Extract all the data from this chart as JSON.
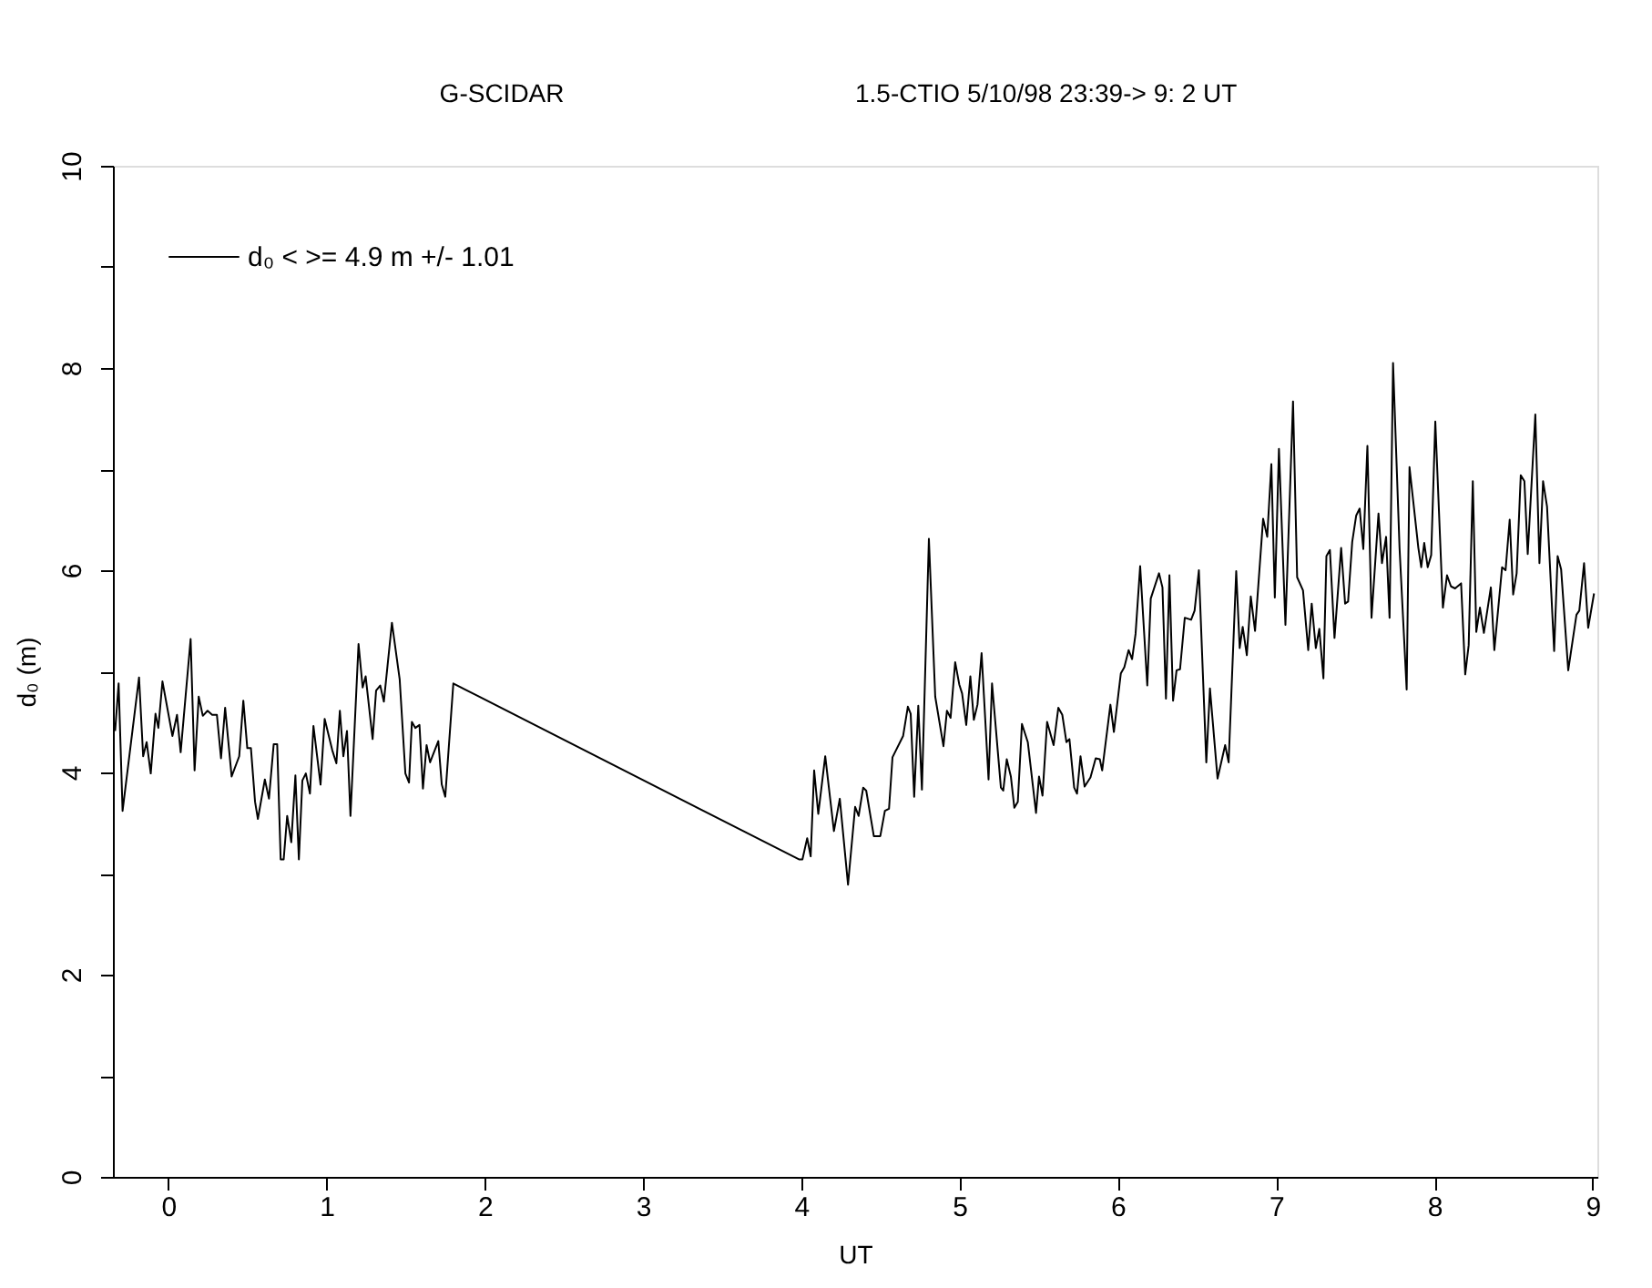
{
  "chart_data": {
    "type": "line",
    "title": "G-SCIDAR",
    "subtitle": "1.5-CTIO    5/10/98 23:39-> 9: 2 UT",
    "xlabel": "UT",
    "ylabel": "d₀ (m)",
    "legend": "top left",
    "grid": false,
    "line_style": "solid",
    "marker": "none",
    "xlim": [
      -0.35,
      9.03
    ],
    "xticks": [
      0,
      1,
      2,
      3,
      4,
      5,
      6,
      7,
      8,
      9
    ],
    "ylim": [
      0,
      10
    ],
    "yticks": [
      0,
      {
        "value": 1,
        "label": null
      },
      2,
      {
        "value": 3,
        "label": null
      },
      4,
      {
        "value": 5,
        "label": null
      },
      6,
      {
        "value": 7,
        "label": null
      },
      8,
      {
        "value": 9,
        "label": null
      },
      10
    ],
    "series": [
      {
        "name": "d₀   < >=  4.9 m +/-  1.01",
        "color": "#000000",
        "x": [
          -0.336,
          -0.314,
          -0.289,
          -0.185,
          -0.159,
          -0.137,
          -0.111,
          -0.081,
          -0.063,
          -0.037,
          0.026,
          0.055,
          0.078,
          0.141,
          0.166,
          0.192,
          0.218,
          0.248,
          0.277,
          0.307,
          0.333,
          0.359,
          0.4,
          0.448,
          0.474,
          0.499,
          0.522,
          0.548,
          0.566,
          0.61,
          0.636,
          0.666,
          0.688,
          0.71,
          0.729,
          0.751,
          0.777,
          0.803,
          0.825,
          0.847,
          0.869,
          0.895,
          0.917,
          0.962,
          0.988,
          1.036,
          1.062,
          1.084,
          1.106,
          1.129,
          1.151,
          1.202,
          1.228,
          1.247,
          1.291,
          1.313,
          1.339,
          1.362,
          1.413,
          1.462,
          1.498,
          1.521,
          1.539,
          1.561,
          1.587,
          1.609,
          1.632,
          1.654,
          1.706,
          1.728,
          1.75,
          1.801,
          3.985,
          4.007,
          4.037,
          4.059,
          4.081,
          4.107,
          4.151,
          4.206,
          4.243,
          4.295,
          4.34,
          4.362,
          4.391,
          4.41,
          4.458,
          4.499,
          4.528,
          4.554,
          4.576,
          4.643,
          4.673,
          4.691,
          4.713,
          4.739,
          4.762,
          4.806,
          4.846,
          4.898,
          4.92,
          4.943,
          4.972,
          4.998,
          5.016,
          5.042,
          5.068,
          5.09,
          5.113,
          5.139,
          5.183,
          5.205,
          5.261,
          5.276,
          5.298,
          5.324,
          5.346,
          5.368,
          5.394,
          5.431,
          5.483,
          5.502,
          5.524,
          5.553,
          5.594,
          5.624,
          5.649,
          5.675,
          5.694,
          5.724,
          5.742,
          5.764,
          5.79,
          5.827,
          5.86,
          5.886,
          5.901,
          5.953,
          5.975,
          6.019,
          6.041,
          6.068,
          6.09,
          6.112,
          6.141,
          6.186,
          6.208,
          6.26,
          6.282,
          6.304,
          6.326,
          6.349,
          6.371,
          6.393,
          6.423,
          6.463,
          6.485,
          6.512,
          6.559,
          6.582,
          6.63,
          6.678,
          6.7,
          6.748,
          6.77,
          6.789,
          6.815,
          6.84,
          6.867,
          6.918,
          6.944,
          6.97,
          6.992,
          7.018,
          7.059,
          7.107,
          7.133,
          7.17,
          7.203,
          7.225,
          7.251,
          7.273,
          7.299,
          7.318,
          7.34,
          7.369,
          7.411,
          7.436,
          7.455,
          7.481,
          7.506,
          7.528,
          7.551,
          7.577,
          7.603,
          7.647,
          7.669,
          7.695,
          7.717,
          7.739,
          7.78,
          7.825,
          7.843,
          7.899,
          7.917,
          7.936,
          7.958,
          7.98,
          8.006,
          8.054,
          8.08,
          8.105,
          8.131,
          8.169,
          8.195,
          8.217,
          8.243,
          8.265,
          8.288,
          8.313,
          8.357,
          8.379,
          8.428,
          8.45,
          8.476,
          8.498,
          8.52,
          8.546,
          8.569,
          8.59,
          8.638,
          8.664,
          8.687,
          8.712,
          8.757,
          8.779,
          8.801,
          8.846,
          8.898,
          8.916,
          8.946,
          8.972,
          9.009
        ],
        "values": [
          4.41,
          4.88,
          3.62,
          4.94,
          4.16,
          4.3,
          3.99,
          4.58,
          4.44,
          4.9,
          4.36,
          4.57,
          4.2,
          5.32,
          4.02,
          4.75,
          4.56,
          4.61,
          4.57,
          4.57,
          4.14,
          4.64,
          3.96,
          4.16,
          4.71,
          4.24,
          4.24,
          3.71,
          3.54,
          3.93,
          3.74,
          4.28,
          4.28,
          3.14,
          3.14,
          3.57,
          3.31,
          3.97,
          3.14,
          3.92,
          3.99,
          3.79,
          4.46,
          3.88,
          4.53,
          4.22,
          4.09,
          4.61,
          4.16,
          4.41,
          3.57,
          5.27,
          4.84,
          4.95,
          4.33,
          4.81,
          4.86,
          4.7,
          5.48,
          4.92,
          3.99,
          3.9,
          4.5,
          4.44,
          4.47,
          3.84,
          4.27,
          4.1,
          4.31,
          3.88,
          3.76,
          4.88,
          3.14,
          3.14,
          3.35,
          3.17,
          4.02,
          3.59,
          4.16,
          3.42,
          3.74,
          2.89,
          3.66,
          3.57,
          3.85,
          3.82,
          3.37,
          3.37,
          3.62,
          3.64,
          4.15,
          4.36,
          4.65,
          4.58,
          3.76,
          4.66,
          3.83,
          6.31,
          4.75,
          4.26,
          4.61,
          4.54,
          5.09,
          4.87,
          4.78,
          4.47,
          4.95,
          4.52,
          4.67,
          5.18,
          3.93,
          4.88,
          3.85,
          3.82,
          4.13,
          3.96,
          3.65,
          3.71,
          4.48,
          4.3,
          3.6,
          3.96,
          3.77,
          4.5,
          4.27,
          4.64,
          4.57,
          4.3,
          4.33,
          3.85,
          3.79,
          4.16,
          3.86,
          3.95,
          4.14,
          4.13,
          4.02,
          4.67,
          4.4,
          4.98,
          5.04,
          5.21,
          5.12,
          5.37,
          6.04,
          4.86,
          5.72,
          5.97,
          5.83,
          4.73,
          5.95,
          4.71,
          5.01,
          5.02,
          5.53,
          5.51,
          5.6,
          6.0,
          4.1,
          4.83,
          3.94,
          4.27,
          4.1,
          5.99,
          5.23,
          5.44,
          5.16,
          5.74,
          5.4,
          6.51,
          6.33,
          7.05,
          5.73,
          7.2,
          5.46,
          7.67,
          5.93,
          5.8,
          5.21,
          5.67,
          5.23,
          5.42,
          4.93,
          6.14,
          6.2,
          5.33,
          6.22,
          5.67,
          5.69,
          6.28,
          6.54,
          6.61,
          6.21,
          7.23,
          5.53,
          6.56,
          6.07,
          6.33,
          5.53,
          8.05,
          6.22,
          4.82,
          7.02,
          6.22,
          6.03,
          6.27,
          6.03,
          6.15,
          7.47,
          5.63,
          5.95,
          5.84,
          5.82,
          5.87,
          4.97,
          5.26,
          6.88,
          5.39,
          5.63,
          5.38,
          5.83,
          5.21,
          6.03,
          6.0,
          6.5,
          5.76,
          5.97,
          6.94,
          6.88,
          6.16,
          7.54,
          6.07,
          6.88,
          6.63,
          5.2,
          6.14,
          6.01,
          5.01,
          5.56,
          5.6,
          6.07,
          5.43,
          5.77
        ]
      }
    ]
  }
}
